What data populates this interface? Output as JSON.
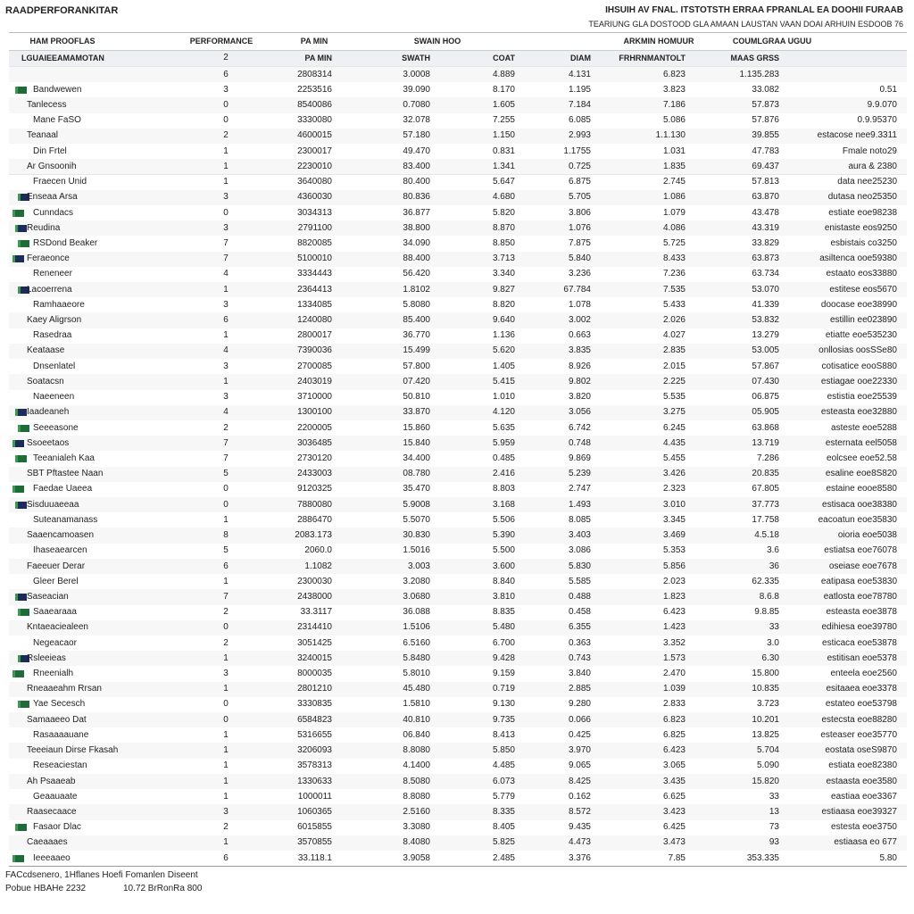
{
  "header": {
    "title": "RAADPERFORANKITAR",
    "right_lines": [
      "IHSUIH AV FNAL. ITSTOTSTH ERRAA FPRANLAL EA DOOHII FURAAB",
      "TEARIUNG GLA DOSTOOD GLA AMAAN LAUSTAN VAAN DOAI ARHUIN ESDOOB 76"
    ]
  },
  "table": {
    "columns": [
      "HAM PROOFLAS",
      "PERFORMANCE",
      "PA MIN",
      "SWAIN HOO",
      "ARKMIN HOMUUR",
      "COUMLGRAA UGUU"
    ],
    "subheader": [
      "LGUAIEEAMAMOTAN",
      2,
      "PA MIN",
      "SWATH",
      "COAT",
      "DIAM",
      "FRHRNMANTOLT",
      "MAAS GRSS"
    ],
    "rows": [
      {
        "values": [
          6,
          "2808314",
          "3.0008",
          "4.889",
          "4.131",
          "6.823",
          "1.135.283"
        ]
      },
      {
        "name": "Bandwewen",
        "values": [
          3,
          "2253516",
          "39.090",
          "8.170",
          "1.195",
          "3.823",
          "33.082",
          "0.51"
        ]
      },
      {
        "name": "Tanlecess",
        "values": [
          0,
          "8540086",
          "0.7080",
          "1.605",
          "7.184",
          "7.186",
          "57.873",
          "9.9.070"
        ]
      },
      {
        "name": "Mane FaSO",
        "values": [
          0,
          "3330080",
          "32.078",
          "7.255",
          "6.085",
          "5.086",
          "57.876",
          "0.9.95370"
        ]
      },
      {
        "name": "Teanaal",
        "values": [
          2,
          "4600015",
          "57.180",
          "1.150",
          "2.993",
          "1.1.130",
          "39.855",
          "estacose nee9.3311"
        ]
      },
      {
        "name": "Din Frtel",
        "values": [
          1,
          "2300017",
          "49.470",
          "0.831",
          "1.1755",
          "1.031",
          "47.783",
          "Fmale noto29"
        ]
      },
      {
        "name": "Ar Gnsoonih",
        "values": [
          1,
          "2230010",
          "83.400",
          "1.341",
          "0.725",
          "1.835",
          "69.437",
          "aura & 2380"
        ]
      },
      {
        "name": "Fraecen Unid",
        "values": [
          1,
          "3640080",
          "80.400",
          "5.647",
          "6.875",
          "2.745",
          "57.813",
          "data nee25230"
        ]
      },
      {
        "name": "Enseaa Arsa",
        "values": [
          3,
          "4360030",
          "80.836",
          "4.680",
          "5.705",
          "1.086",
          "63.870",
          "dutasa neo25350"
        ]
      },
      {
        "name": "Cunndacs",
        "values": [
          0,
          "3034313",
          "36.877",
          "5.820",
          "3.806",
          "1.079",
          "43.478",
          "estiate eoe98238"
        ]
      },
      {
        "name": "Reudina",
        "values": [
          3,
          "2791100",
          "38.800",
          "8.870",
          "1.076",
          "4.086",
          "43.319",
          "enistaste eos9250"
        ]
      },
      {
        "name": "RSDond Beaker",
        "values": [
          7,
          "8820085",
          "34.090",
          "8.850",
          "7.875",
          "5.725",
          "33.829",
          "esbistais co3250"
        ]
      },
      {
        "name": "Feraeonce",
        "values": [
          7,
          "5100010",
          "88.400",
          "3.713",
          "5.840",
          "8.433",
          "63.873",
          "asiltenca ooe59380"
        ]
      },
      {
        "name": "Reneneer",
        "values": [
          4,
          "3334443",
          "56.420",
          "3.340",
          "3.236",
          "7.236",
          "63.734",
          "estaato eos33880"
        ]
      },
      {
        "name": "Lacoerrena",
        "values": [
          1,
          "2364413",
          "1.8102",
          "9.827",
          "67.784",
          "7.535",
          "53.070",
          "estitese eos5670"
        ]
      },
      {
        "name": "Ramhaaeore",
        "values": [
          3,
          "1334085",
          "5.8080",
          "8.820",
          "1.078",
          "5.433",
          "41.339",
          "doocase eoe38990"
        ]
      },
      {
        "name": "Kaey Aligrson",
        "values": [
          6,
          "1240080",
          "85.400",
          "9.640",
          "3.002",
          "2.026",
          "53.832",
          "estillin ee023890"
        ]
      },
      {
        "name": "Rasedraa",
        "values": [
          1,
          "2800017",
          "36.770",
          "1.136",
          "0.663",
          "4.027",
          "13.279",
          "etiatte eoe535230"
        ]
      },
      {
        "name": "Keataase",
        "values": [
          4,
          "7390036",
          "15.499",
          "5.620",
          "3.835",
          "2.835",
          "53.005",
          "onllosias oosSSe80"
        ]
      },
      {
        "name": "Dnsenlatel",
        "values": [
          3,
          "2700085",
          "57.800",
          "1.405",
          "8.926",
          "2.015",
          "57.867",
          "cotisatice eooS880"
        ]
      },
      {
        "name": "Soatacsn",
        "values": [
          1,
          "2403019",
          "07.420",
          "5.415",
          "9.802",
          "2.225",
          "07.430",
          "estiagae ooe22330"
        ]
      },
      {
        "name": "Naeeneen",
        "values": [
          3,
          "3710000",
          "50.810",
          "1.010",
          "3.820",
          "5.535",
          "06.875",
          "estistia eoe25539"
        ]
      },
      {
        "name": "Iaadeaneh",
        "values": [
          4,
          "1300100",
          "33.870",
          "4.120",
          "3.056",
          "3.275",
          "05.905",
          "esteasta eoe32880"
        ]
      },
      {
        "name": "Seeeasone",
        "values": [
          2,
          "2200005",
          "15.860",
          "5.635",
          "6.742",
          "6.245",
          "63.868",
          "asteste eoe5288"
        ]
      },
      {
        "name": "Ssoeetaos",
        "values": [
          7,
          "3036485",
          "15.840",
          "5.959",
          "0.748",
          "4.435",
          "13.719",
          "esternata eel5058"
        ]
      },
      {
        "name": "Teeanialeh Kaa",
        "values": [
          7,
          "2730120",
          "34.400",
          "0.485",
          "9.869",
          "5.455",
          "7.286",
          "eolcsee eoe52.58"
        ]
      },
      {
        "name": "SBT Pftastee Naan",
        "values": [
          5,
          "2433003",
          "08.780",
          "2.416",
          "5.239",
          "3.426",
          "20.835",
          "esaline eoe8S820"
        ]
      },
      {
        "name": "Faedae Uaeea",
        "values": [
          0,
          "9120325",
          "35.470",
          "8.803",
          "2.747",
          "2.323",
          "67.805",
          "estaine eooe8580"
        ]
      },
      {
        "name": "Sisduuaeeaa",
        "values": [
          0,
          "7880080",
          "5.9008",
          "3.168",
          "1.493",
          "3.010",
          "37.773",
          "estisaca ooe38380"
        ]
      },
      {
        "name": "Suteanamanass",
        "values": [
          1,
          "2886470",
          "5.5070",
          "5.506",
          "8.085",
          "3.345",
          "17.758",
          "eacoatun eoe35830"
        ]
      },
      {
        "name": "Saaencamoasen",
        "values": [
          8,
          "2083.173",
          "30.830",
          "5.390",
          "3.403",
          "3.469",
          "4.5.18",
          "oioria eoe5038"
        ]
      },
      {
        "name": "Ihaseaearcen",
        "values": [
          5,
          "2060.0",
          "1.5016",
          "5.500",
          "3.086",
          "5.353",
          "3.6",
          "estiatsa eoe76078"
        ]
      },
      {
        "name": "Faeeuer Derar",
        "values": [
          6,
          "1.1082",
          "3.003",
          "3.600",
          "5.830",
          "5.856",
          "36",
          "oseiase eoe7678"
        ]
      },
      {
        "name": "Gleer Berel",
        "values": [
          1,
          "2300030",
          "3.2080",
          "8.840",
          "5.585",
          "2.023",
          "62.335",
          "eatipasa eoe53830"
        ]
      },
      {
        "name": "Saseacian",
        "values": [
          7,
          "2438000",
          "3.0680",
          "3.810",
          "0.488",
          "1.823",
          "8.6.8",
          "eatlosta eoe78780"
        ]
      },
      {
        "name": "Saaearaaa",
        "values": [
          2,
          "33.3117",
          "36.088",
          "8.835",
          "0.458",
          "6.423",
          "9.8.85",
          "esteasta eoe3878"
        ]
      },
      {
        "name": "Kntaeaciealeen",
        "values": [
          0,
          "2314410",
          "1.5106",
          "5.480",
          "6.355",
          "1.423",
          "33",
          "edihiesa eoe39780"
        ]
      },
      {
        "name": "Negeacaor",
        "values": [
          2,
          "3051425",
          "6.5160",
          "6.700",
          "0.363",
          "3.352",
          "3.0",
          "esticaca eoe53878"
        ]
      },
      {
        "name": "Rsleeieas",
        "values": [
          1,
          "3240015",
          "5.8480",
          "9.428",
          "0.743",
          "1.573",
          "6.30",
          "estitisan eoe5378"
        ]
      },
      {
        "name": "Rneenialh",
        "values": [
          3,
          "8000035",
          "5.8010",
          "9.159",
          "3.840",
          "2.470",
          "15.800",
          "enteela eoe2560"
        ]
      },
      {
        "name": "Rneaaeahm Rrsan",
        "values": [
          1,
          "2801210",
          "45.480",
          "0.719",
          "2.885",
          "1.039",
          "10.835",
          "esitaaea eoe3378"
        ]
      },
      {
        "name": "Yae Secesch",
        "values": [
          0,
          "3330835",
          "1.5810",
          "9.130",
          "9.280",
          "2.833",
          "3.723",
          "estateo eoe53798"
        ]
      },
      {
        "name": "Samaaeeo Dat",
        "values": [
          0,
          "6584823",
          "40.810",
          "9.735",
          "0.066",
          "6.823",
          "10.201",
          "estecsta eoe88280"
        ]
      },
      {
        "name": "Rasaaaauane",
        "values": [
          1,
          "5316655",
          "06.840",
          "8.413",
          "0.425",
          "6.825",
          "13.825",
          "esteaser eoe35770"
        ]
      },
      {
        "name": "Teeeiaun Dirse Fkasah",
        "values": [
          1,
          "3206093",
          "8.8080",
          "5.850",
          "3.970",
          "6.423",
          "5.704",
          "eostata oseS9870"
        ]
      },
      {
        "name": "Reseaciestan",
        "values": [
          1,
          "3578313",
          "4.1400",
          "4.485",
          "9.065",
          "3.065",
          "5.090",
          "estiata eoe82380"
        ]
      },
      {
        "name": "Ah Psaaeab",
        "values": [
          1,
          "1330633",
          "8.5080",
          "6.073",
          "8.425",
          "3.435",
          "15.820",
          "estaasta eoe3580"
        ]
      },
      {
        "name": "Geaauaate",
        "values": [
          1,
          "1000011",
          "8.8080",
          "5.779",
          "0.162",
          "6.625",
          "33",
          "eastiaa eoe3367"
        ]
      },
      {
        "name": "Raasecaace",
        "values": [
          3,
          "1060365",
          "2.5160",
          "8.335",
          "8.572",
          "3.423",
          "13",
          "estiaasa eoe39327"
        ]
      },
      {
        "name": "Fasaor Dlac",
        "values": [
          2,
          "6015855",
          "3.3080",
          "8.405",
          "9.435",
          "6.425",
          "73",
          "estesta eoe3750"
        ]
      },
      {
        "name": "Caeaaaes",
        "values": [
          1,
          "3570855",
          "8.4080",
          "5.825",
          "4.473",
          "3.473",
          "93",
          "estiaasa eo 677"
        ]
      },
      {
        "name": "Ieeeaaeo",
        "values": [
          6,
          "33.118.1",
          "3.9058",
          "2.485",
          "3.376",
          "7.85",
          "353.335",
          "5.80"
        ]
      }
    ]
  },
  "footer": {
    "lines": [
      "FACcdsenero, 1Hflanes Hoefi Fomanlen Diseent",
      "Pobue HBAHe 2232",
      "10.72 BrRonRa 800"
    ]
  }
}
